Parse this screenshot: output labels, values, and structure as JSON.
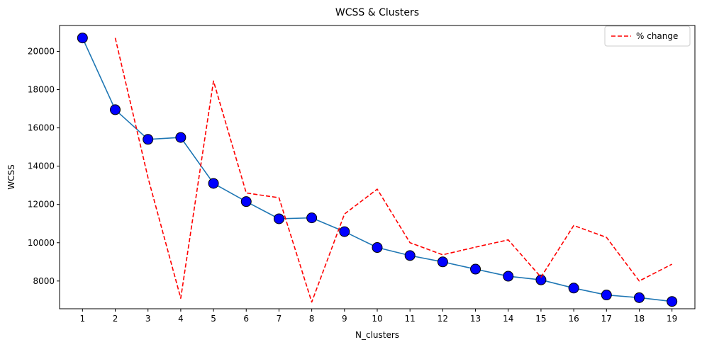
{
  "chart_data": {
    "type": "line",
    "title": "WCSS & Clusters",
    "xlabel": "N_clusters",
    "ylabel": "WCSS",
    "x": [
      1,
      2,
      3,
      4,
      5,
      6,
      7,
      8,
      9,
      10,
      11,
      12,
      13,
      14,
      15,
      16,
      17,
      18,
      19
    ],
    "xlim": [
      0.3,
      19.7
    ],
    "ylim": [
      6550,
      21350
    ],
    "yticks": [
      8000,
      10000,
      12000,
      14000,
      16000,
      18000,
      20000
    ],
    "grid": false,
    "legend_position": "top-right",
    "series": [
      {
        "role": "wcss",
        "color": "#1f77b4",
        "marker_color": "#0000ff",
        "x": [
          1,
          2,
          3,
          4,
          5,
          6,
          7,
          8,
          9,
          10,
          11,
          12,
          13,
          14,
          15,
          16,
          17,
          18,
          19
        ],
        "values": [
          20700,
          16950,
          15400,
          15500,
          13100,
          12150,
          11250,
          11300,
          10580,
          9750,
          9330,
          9000,
          8620,
          8250,
          8060,
          7630,
          7270,
          7130,
          6930
        ]
      },
      {
        "name": "% change",
        "role": "pct_change",
        "color": "#ff0000",
        "dashed": true,
        "x": [
          2,
          3,
          4,
          5,
          6,
          7,
          8,
          9,
          10,
          11,
          12,
          13,
          14,
          15,
          16,
          17,
          18,
          19
        ],
        "values": [
          20700,
          13400,
          7100,
          18450,
          12600,
          12350,
          6900,
          11500,
          12800,
          10000,
          9370,
          9770,
          10150,
          8200,
          10900,
          10280,
          8000,
          8880
        ]
      }
    ]
  }
}
